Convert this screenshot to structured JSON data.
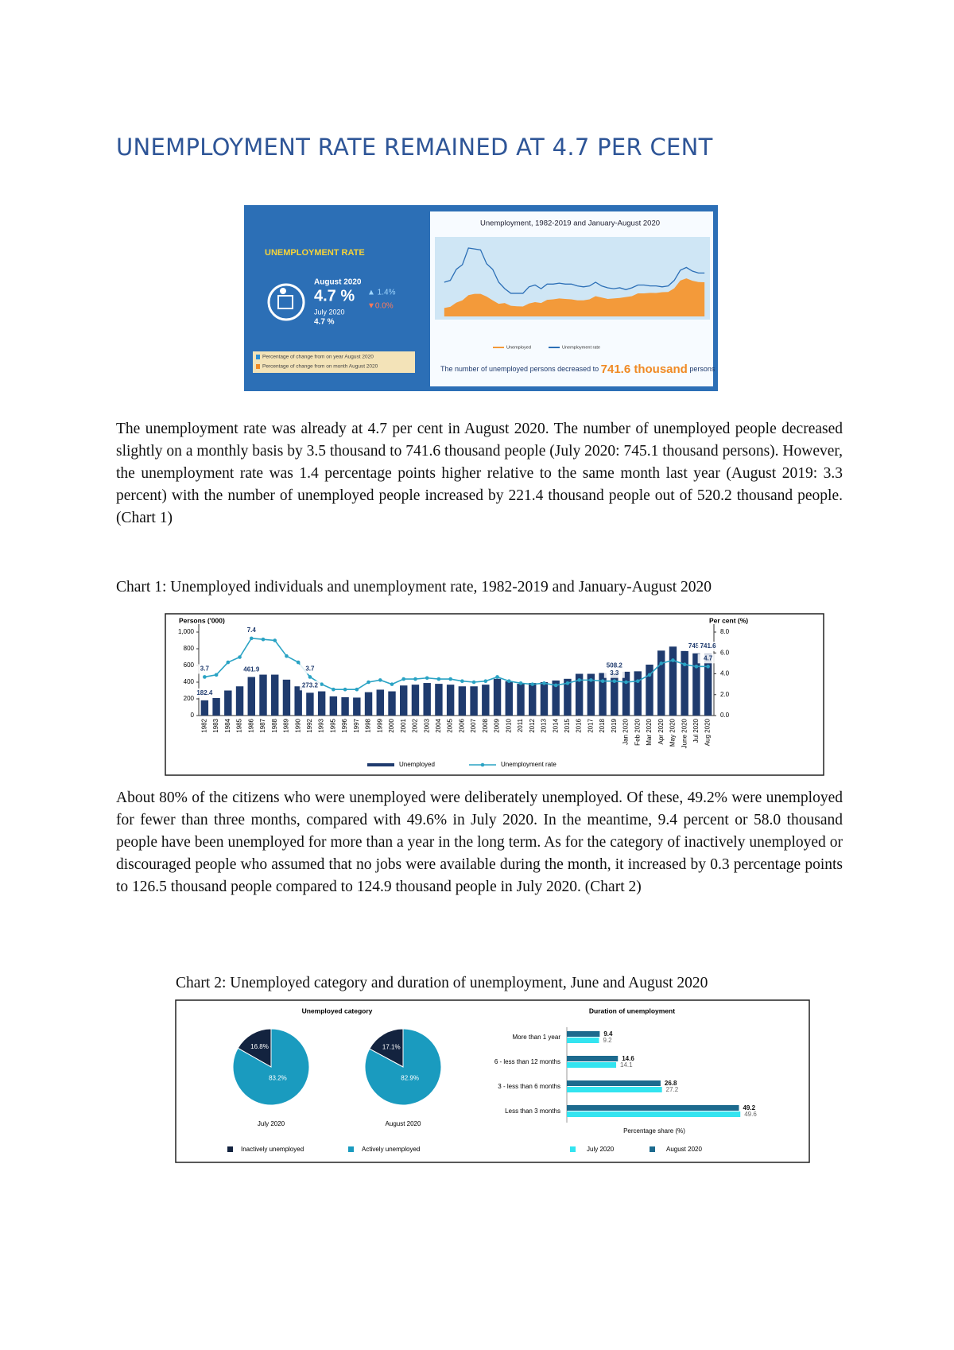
{
  "header": {
    "title": "UNEMPLOYMENT RATE REMAINED AT 4.7 PER CENT"
  },
  "infographic": {
    "label": "UNEMPLOYMENT RATE",
    "current_period": "August 2020",
    "current_rate": "4.7 %",
    "previous_period": "July 2020",
    "previous_rate": "4.7 %",
    "yoy_change": "▲ 1.4%",
    "mom_change": "▼0.0%",
    "legend": [
      "Percentage of change from on year August 2020",
      "Percentage of change from on month August 2020"
    ],
    "chart_title": "Unemployment, 1982-2019 and January-August 2020",
    "note": [
      "The number of unemployed persons decreased to",
      "741.6 thousand",
      "persons"
    ]
  },
  "paragraphs": [
    "The unemployment rate was already at 4.7 per cent in August 2020. The number of unemployed people decreased slightly on a monthly basis by 3.5 thousand to 741.6 thousand people (July 2020: 745.1 thousand persons). However, the unemployment rate was 1.4 percentage points higher relative to the same month last year (August 2019: 3.3 percent) with the number of unemployed people increased by 221.4 thousand people out of 520.2 thousand people. (Chart 1)",
    "About 80% of the citizens who were unemployed were deliberately unemployed. Of these, 49.2% were unemployed for fewer than three months, compared with 49.6% in July 2020. In the meantime, 9.4 percent or 58.0 thousand people have been unemployed for more than a year in the long term. As for the category of inactively unemployed or discouraged people who assumed that no jobs were available during the month, it increased by 0.3 percentage points to 126.5 thousand people compared to 124.9 thousand people in July 2020. (Chart 2)"
  ],
  "captions": [
    "Chart 1: Unemployed individuals and unemployment rate, 1982-2019 and January-August 2020",
    "Chart 2: Unemployed category and duration of unemployment, June and August 2020"
  ],
  "chart_data": [
    {
      "type": "combo",
      "ylabel": "Persons ('000)",
      "y2label": "Per cent (%)",
      "categories": [
        "1982",
        "1983",
        "1984",
        "1985",
        "1986",
        "1987",
        "1988",
        "1989",
        "1990",
        "1992",
        "1993",
        "1995",
        "1996",
        "1997",
        "1998",
        "1999",
        "2000",
        "2001",
        "2002",
        "2003",
        "2004",
        "2005",
        "2006",
        "2007",
        "2008",
        "2009",
        "2010",
        "2011",
        "2012",
        "2013",
        "2014",
        "2015",
        "2016",
        "2017",
        "2018",
        "2019",
        "Jan 2020",
        "Feb 2020",
        "Mar 2020",
        "Apr 2020",
        "May 2020",
        "June 2020",
        "Jul 2020",
        "Aug 2020"
      ],
      "ylim": [
        0,
        1000
      ],
      "yticks": [
        0,
        200,
        400,
        600,
        800,
        {
          "value": 1000,
          "label": "1,000"
        }
      ],
      "y2lim": [
        0,
        8
      ],
      "y2ticks": [
        {
          "value": 0,
          "label": "0.0"
        },
        {
          "value": 2,
          "label": "2.0"
        },
        {
          "value": 4,
          "label": "4.0"
        },
        {
          "value": 6,
          "label": "6.0"
        },
        {
          "value": 8,
          "label": "8.0"
        }
      ],
      "series": [
        {
          "name": "Unemployed",
          "type": "bar",
          "color": "#1f3b6e",
          "values": [
            182.4,
            210,
            300,
            350,
            461.9,
            490,
            490,
            430,
            350,
            273.2,
            290,
            230,
            220,
            215,
            280,
            310,
            290,
            360,
            370,
            390,
            380,
            370,
            350,
            350,
            370,
            440,
            410,
            380,
            390,
            400,
            420,
            440,
            500,
            500,
            510,
            508.2,
            525,
            530,
            610,
            778,
            826,
            773,
            745.1,
            741.6
          ],
          "value_labels": [
            "182.4",
            null,
            null,
            null,
            "461.9",
            null,
            null,
            null,
            null,
            "273.2",
            null,
            null,
            null,
            null,
            null,
            null,
            null,
            null,
            null,
            null,
            null,
            null,
            null,
            null,
            null,
            null,
            null,
            null,
            null,
            null,
            null,
            null,
            null,
            null,
            null,
            "508.2",
            null,
            null,
            null,
            null,
            null,
            null,
            "745.1",
            "741.6"
          ]
        },
        {
          "name": "Unemployment rate",
          "type": "line",
          "axis": "y2",
          "color": "#2aa3c4",
          "values": [
            3.7,
            3.9,
            5.1,
            5.6,
            7.4,
            7.3,
            7.2,
            5.7,
            5.1,
            3.7,
            3.0,
            2.5,
            2.5,
            2.5,
            3.2,
            3.4,
            3.0,
            3.5,
            3.5,
            3.6,
            3.5,
            3.5,
            3.3,
            3.2,
            3.3,
            3.7,
            3.3,
            3.1,
            3.0,
            3.1,
            2.9,
            3.1,
            3.4,
            3.4,
            3.3,
            3.3,
            3.2,
            3.3,
            3.9,
            5.0,
            5.3,
            4.9,
            4.7,
            4.7
          ],
          "value_labels": [
            "3.7",
            null,
            null,
            null,
            "7.4",
            null,
            null,
            null,
            null,
            "3.7",
            null,
            null,
            null,
            null,
            null,
            null,
            null,
            null,
            null,
            null,
            null,
            null,
            null,
            null,
            null,
            null,
            null,
            null,
            null,
            null,
            null,
            null,
            null,
            null,
            null,
            "3.3",
            null,
            null,
            null,
            null,
            null,
            null,
            null,
            "4.7"
          ]
        }
      ]
    },
    {
      "type": "pies",
      "title": "Unemployed category",
      "categories": [
        "Inactively unemployed",
        "Actively unemployed"
      ],
      "colors": [
        "#13233f",
        "#1a9bbf"
      ],
      "series": [
        {
          "name": "July 2020",
          "values": [
            16.8,
            83.2
          ],
          "value_labels": [
            "16.8%",
            "83.2%"
          ]
        },
        {
          "name": "August 2020",
          "values": [
            17.1,
            82.9
          ],
          "value_labels": [
            "17.1%",
            "82.9%"
          ]
        }
      ]
    },
    {
      "type": "hbar",
      "title": "Duration of unemployment",
      "xlabel": "Percentage share (%)",
      "categories": [
        "More than 1 year",
        "6 - less than 12 months",
        "3 - less than 6 months",
        "Less than 3 months"
      ],
      "xlim": [
        0,
        50
      ],
      "series": [
        {
          "name": "July 2020",
          "color": "#33e4f0",
          "values": [
            9.2,
            14.1,
            27.2,
            49.6
          ]
        },
        {
          "name": "August 2020",
          "color": "#1c6a8e",
          "values": [
            9.4,
            14.6,
            26.8,
            49.2
          ]
        }
      ]
    }
  ]
}
